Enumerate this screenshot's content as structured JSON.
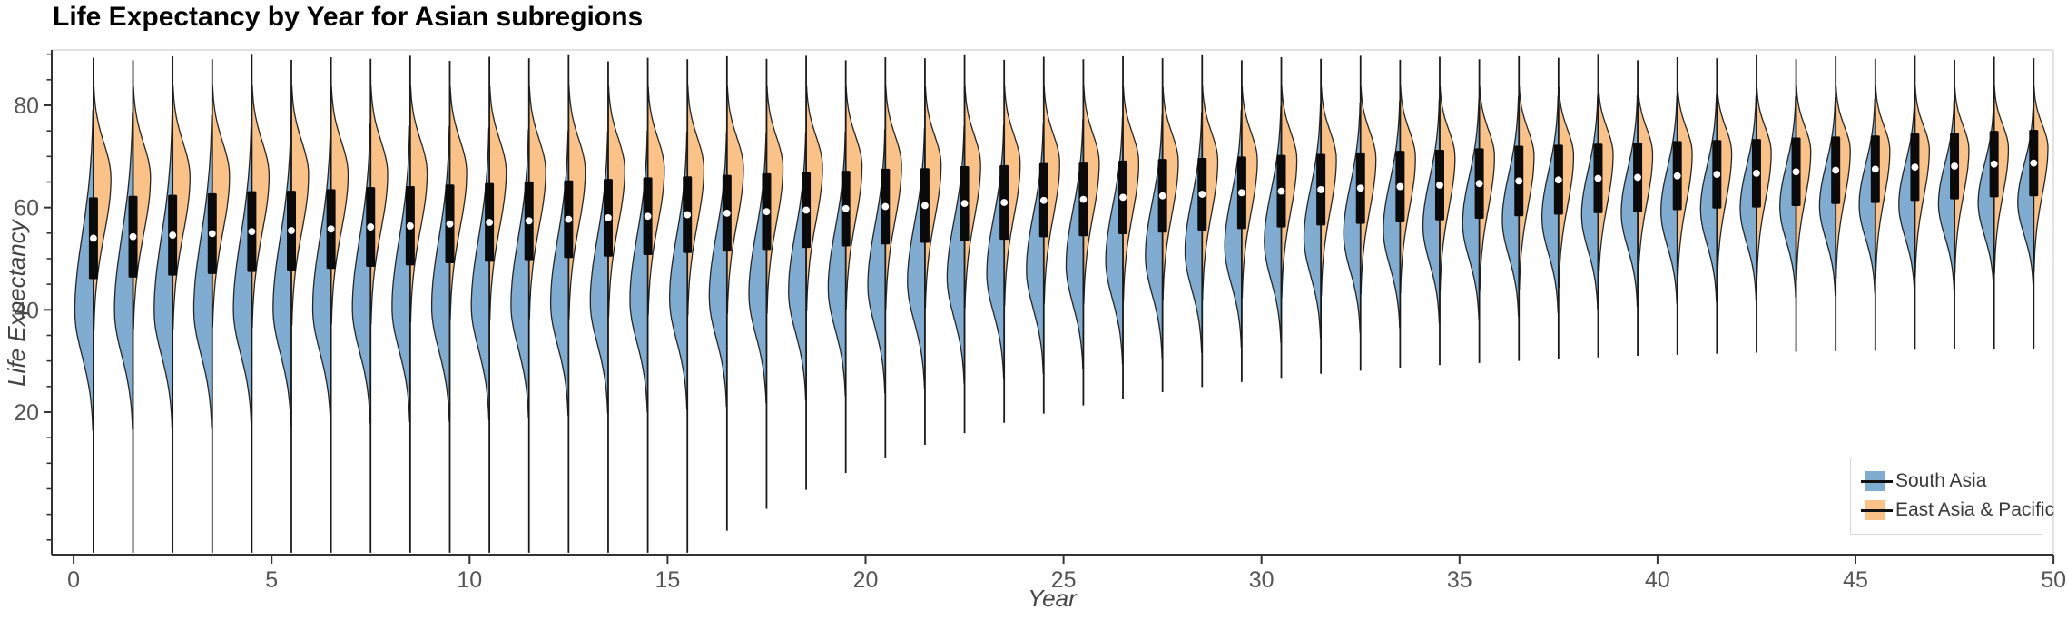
{
  "title": "Life Expectancy by Year for Asian subregions",
  "x_axis": {
    "label": "Year",
    "ticks": [
      0,
      5,
      10,
      15,
      20,
      25,
      30,
      35,
      40,
      45,
      50
    ]
  },
  "y_axis": {
    "label": "Life Expectancy",
    "ticks": [
      20,
      40,
      60,
      80
    ],
    "minor_step": 5,
    "minor_range": [
      -5,
      90
    ]
  },
  "legend": {
    "items": [
      {
        "label": "South Asia",
        "color": "#7FACD0"
      },
      {
        "label": "East Asia & Pacific",
        "color": "#FBC287"
      }
    ]
  },
  "colors": {
    "south_asia": "#7FACD0",
    "east_asia_pacific": "#FBC287",
    "outline": "#262626",
    "box": "#0a0a0a",
    "median_dot": "#ffffff",
    "stem": "#1a1a1a",
    "spine_dark": "#333333",
    "spine_light": "#d9d9d9",
    "tick_label": "#555555"
  },
  "chart_data": {
    "type": "violin",
    "split": true,
    "title": "Life Expectancy by Year for Asian subregions",
    "xlabel": "Year",
    "ylabel": "Life Expectancy",
    "xlim": [
      -0.55,
      50
    ],
    "ylim": [
      -8,
      91
    ],
    "legend_position": "lower right",
    "series_names": [
      "South Asia",
      "East Asia & Pacific"
    ],
    "violins": [
      {
        "year": 0,
        "med": 54.0,
        "q1": 46.0,
        "q3": 62.0,
        "pb": 39.7,
        "sb": 11.0,
        "po": 65.8,
        "so": 9.0,
        "lo": -7.5,
        "hi": 89.3
      },
      {
        "year": 1,
        "med": 54.3,
        "q1": 46.3,
        "q3": 62.3,
        "pb": 39.8,
        "sb": 10.9,
        "po": 65.9,
        "so": 8.9,
        "lo": -7.5,
        "hi": 88.8
      },
      {
        "year": 2,
        "med": 54.6,
        "q1": 46.7,
        "q3": 62.5,
        "pb": 39.8,
        "sb": 10.8,
        "po": 66.0,
        "so": 8.9,
        "lo": -7.5,
        "hi": 89.6
      },
      {
        "year": 3,
        "med": 54.9,
        "q1": 47.0,
        "q3": 62.8,
        "pb": 39.9,
        "sb": 10.8,
        "po": 66.2,
        "so": 8.8,
        "lo": -7.5,
        "hi": 89.0
      },
      {
        "year": 4,
        "med": 55.3,
        "q1": 47.4,
        "q3": 63.2,
        "pb": 40.0,
        "sb": 10.7,
        "po": 66.3,
        "so": 8.8,
        "lo": -7.5,
        "hi": 89.9
      },
      {
        "year": 5,
        "med": 55.5,
        "q1": 47.7,
        "q3": 63.3,
        "pb": 40.1,
        "sb": 10.6,
        "po": 66.4,
        "so": 8.7,
        "lo": -7.5,
        "hi": 88.9
      },
      {
        "year": 6,
        "med": 55.8,
        "q1": 48.0,
        "q3": 63.6,
        "pb": 40.2,
        "sb": 10.5,
        "po": 66.5,
        "so": 8.6,
        "lo": -7.5,
        "hi": 89.4
      },
      {
        "year": 7,
        "med": 56.2,
        "q1": 48.4,
        "q3": 64.0,
        "pb": 40.3,
        "sb": 10.4,
        "po": 66.6,
        "so": 8.6,
        "lo": -7.5,
        "hi": 89.1
      },
      {
        "year": 8,
        "med": 56.4,
        "q1": 48.7,
        "q3": 64.2,
        "pb": 40.4,
        "sb": 10.3,
        "po": 66.8,
        "so": 8.5,
        "lo": -7.5,
        "hi": 89.7
      },
      {
        "year": 9,
        "med": 56.8,
        "q1": 49.1,
        "q3": 64.5,
        "pb": 40.5,
        "sb": 10.3,
        "po": 66.9,
        "so": 8.4,
        "lo": -7.5,
        "hi": 88.7
      },
      {
        "year": 10,
        "med": 57.1,
        "q1": 49.4,
        "q3": 64.8,
        "pb": 40.7,
        "sb": 10.2,
        "po": 67.0,
        "so": 8.4,
        "lo": -7.5,
        "hi": 89.5
      },
      {
        "year": 11,
        "med": 57.4,
        "q1": 49.7,
        "q3": 65.1,
        "pb": 40.9,
        "sb": 10.1,
        "po": 67.1,
        "so": 8.3,
        "lo": -7.5,
        "hi": 89.2
      },
      {
        "year": 12,
        "med": 57.7,
        "q1": 50.1,
        "q3": 65.3,
        "pb": 41.2,
        "sb": 10.0,
        "po": 67.2,
        "so": 8.3,
        "lo": -7.5,
        "hi": 89.8
      },
      {
        "year": 13,
        "med": 58.0,
        "q1": 50.4,
        "q3": 65.6,
        "pb": 41.5,
        "sb": 9.9,
        "po": 67.4,
        "so": 8.2,
        "lo": -7.5,
        "hi": 88.6
      },
      {
        "year": 14,
        "med": 58.3,
        "q1": 50.7,
        "q3": 65.9,
        "pb": 41.8,
        "sb": 9.9,
        "po": 67.5,
        "so": 8.1,
        "lo": -7.5,
        "hi": 89.3
      },
      {
        "year": 15,
        "med": 58.6,
        "q1": 51.1,
        "q3": 66.1,
        "pb": 42.1,
        "sb": 9.8,
        "po": 67.6,
        "so": 8.1,
        "lo": -7.5,
        "hi": 89.0
      },
      {
        "year": 16,
        "med": 58.9,
        "q1": 51.4,
        "q3": 66.4,
        "pb": 42.5,
        "sb": 9.7,
        "po": 67.7,
        "so": 8.0,
        "lo": -3.2,
        "hi": 89.6
      },
      {
        "year": 17,
        "med": 59.2,
        "q1": 51.7,
        "q3": 66.7,
        "pb": 43.0,
        "sb": 9.6,
        "po": 67.8,
        "so": 8.0,
        "lo": 1.1,
        "hi": 89.1
      },
      {
        "year": 18,
        "med": 59.5,
        "q1": 52.1,
        "q3": 66.9,
        "pb": 43.5,
        "sb": 9.5,
        "po": 68.0,
        "so": 7.9,
        "lo": 4.8,
        "hi": 89.7
      },
      {
        "year": 19,
        "med": 59.8,
        "q1": 52.4,
        "q3": 67.2,
        "pb": 44.1,
        "sb": 9.4,
        "po": 68.1,
        "so": 7.8,
        "lo": 8.1,
        "hi": 88.8
      },
      {
        "year": 20,
        "med": 60.2,
        "q1": 52.8,
        "q3": 67.6,
        "pb": 44.7,
        "sb": 9.4,
        "po": 68.2,
        "so": 7.8,
        "lo": 11.1,
        "hi": 89.4
      },
      {
        "year": 21,
        "med": 60.4,
        "q1": 53.1,
        "q3": 67.7,
        "pb": 45.4,
        "sb": 9.3,
        "po": 68.3,
        "so": 7.7,
        "lo": 13.6,
        "hi": 89.2
      },
      {
        "year": 22,
        "med": 60.8,
        "q1": 53.5,
        "q3": 68.1,
        "pb": 46.2,
        "sb": 9.2,
        "po": 68.4,
        "so": 7.7,
        "lo": 15.9,
        "hi": 89.8
      },
      {
        "year": 23,
        "med": 61.0,
        "q1": 53.7,
        "q3": 68.3,
        "pb": 47.0,
        "sb": 9.1,
        "po": 68.6,
        "so": 7.6,
        "lo": 17.9,
        "hi": 88.9
      },
      {
        "year": 24,
        "med": 61.4,
        "q1": 54.2,
        "q3": 68.7,
        "pb": 47.8,
        "sb": 9.0,
        "po": 68.7,
        "so": 7.5,
        "lo": 19.7,
        "hi": 89.5
      },
      {
        "year": 25,
        "med": 61.6,
        "q1": 54.4,
        "q3": 68.8,
        "pb": 48.7,
        "sb": 9.0,
        "po": 68.8,
        "so": 7.5,
        "lo": 21.3,
        "hi": 89.0
      },
      {
        "year": 26,
        "med": 62.0,
        "q1": 54.8,
        "q3": 69.2,
        "pb": 49.6,
        "sb": 8.9,
        "po": 68.9,
        "so": 7.4,
        "lo": 22.6,
        "hi": 89.6
      },
      {
        "year": 27,
        "med": 62.3,
        "q1": 55.1,
        "q3": 69.5,
        "pb": 50.5,
        "sb": 8.8,
        "po": 69.0,
        "so": 7.3,
        "lo": 23.9,
        "hi": 89.2
      },
      {
        "year": 28,
        "med": 62.6,
        "q1": 55.5,
        "q3": 69.7,
        "pb": 51.4,
        "sb": 8.7,
        "po": 69.2,
        "so": 7.3,
        "lo": 24.9,
        "hi": 89.8
      },
      {
        "year": 29,
        "med": 62.9,
        "q1": 55.8,
        "q3": 70.0,
        "pb": 52.3,
        "sb": 8.6,
        "po": 69.3,
        "so": 7.2,
        "lo": 25.9,
        "hi": 88.8
      },
      {
        "year": 30,
        "med": 63.2,
        "q1": 56.1,
        "q3": 70.3,
        "pb": 53.2,
        "sb": 8.6,
        "po": 69.4,
        "so": 7.2,
        "lo": 26.7,
        "hi": 89.4
      },
      {
        "year": 31,
        "med": 63.5,
        "q1": 56.5,
        "q3": 70.5,
        "pb": 54.0,
        "sb": 8.5,
        "po": 69.5,
        "so": 7.1,
        "lo": 27.5,
        "hi": 89.1
      },
      {
        "year": 32,
        "med": 63.8,
        "q1": 56.8,
        "q3": 70.8,
        "pb": 54.8,
        "sb": 8.4,
        "po": 69.6,
        "so": 7.0,
        "lo": 28.1,
        "hi": 89.7
      },
      {
        "year": 33,
        "med": 64.1,
        "q1": 57.1,
        "q3": 71.1,
        "pb": 55.6,
        "sb": 8.3,
        "po": 69.8,
        "so": 7.0,
        "lo": 28.7,
        "hi": 88.9
      },
      {
        "year": 34,
        "med": 64.4,
        "q1": 57.5,
        "q3": 71.3,
        "pb": 56.3,
        "sb": 8.2,
        "po": 69.9,
        "so": 6.9,
        "lo": 29.2,
        "hi": 89.5
      },
      {
        "year": 35,
        "med": 64.7,
        "q1": 57.8,
        "q3": 71.6,
        "pb": 56.9,
        "sb": 8.1,
        "po": 70.0,
        "so": 6.9,
        "lo": 29.6,
        "hi": 89.0
      },
      {
        "year": 36,
        "med": 65.2,
        "q1": 58.3,
        "q3": 72.1,
        "pb": 57.5,
        "sb": 8.1,
        "po": 70.1,
        "so": 6.8,
        "lo": 30.0,
        "hi": 89.6
      },
      {
        "year": 37,
        "med": 65.4,
        "q1": 58.6,
        "q3": 72.3,
        "pb": 58.0,
        "sb": 8.0,
        "po": 70.2,
        "so": 6.7,
        "lo": 30.4,
        "hi": 89.3
      },
      {
        "year": 38,
        "med": 65.7,
        "q1": 58.9,
        "q3": 72.5,
        "pb": 58.5,
        "sb": 7.9,
        "po": 70.4,
        "so": 6.7,
        "lo": 30.7,
        "hi": 89.9
      },
      {
        "year": 39,
        "med": 65.9,
        "q1": 59.1,
        "q3": 72.7,
        "pb": 58.9,
        "sb": 7.8,
        "po": 70.5,
        "so": 6.6,
        "lo": 31.0,
        "hi": 88.8
      },
      {
        "year": 40,
        "med": 66.2,
        "q1": 59.5,
        "q3": 73.0,
        "pb": 59.2,
        "sb": 7.7,
        "po": 70.6,
        "so": 6.6,
        "lo": 31.2,
        "hi": 89.4
      },
      {
        "year": 41,
        "med": 66.5,
        "q1": 59.8,
        "q3": 73.2,
        "pb": 59.6,
        "sb": 7.7,
        "po": 70.7,
        "so": 6.5,
        "lo": 31.4,
        "hi": 89.2
      },
      {
        "year": 42,
        "med": 66.7,
        "q1": 60.0,
        "q3": 73.4,
        "pb": 59.8,
        "sb": 7.6,
        "po": 70.8,
        "so": 6.4,
        "lo": 31.6,
        "hi": 89.8
      },
      {
        "year": 43,
        "med": 67.0,
        "q1": 60.3,
        "q3": 73.7,
        "pb": 60.1,
        "sb": 7.5,
        "po": 71.0,
        "so": 6.4,
        "lo": 31.8,
        "hi": 89.0
      },
      {
        "year": 44,
        "med": 67.3,
        "q1": 60.7,
        "q3": 73.9,
        "pb": 60.3,
        "sb": 7.4,
        "po": 71.1,
        "so": 6.3,
        "lo": 31.9,
        "hi": 89.6
      },
      {
        "year": 45,
        "med": 67.5,
        "q1": 60.9,
        "q3": 74.1,
        "pb": 60.5,
        "sb": 7.3,
        "po": 71.2,
        "so": 6.3,
        "lo": 32.0,
        "hi": 89.1
      },
      {
        "year": 46,
        "med": 67.9,
        "q1": 61.3,
        "q3": 74.5,
        "pb": 60.6,
        "sb": 7.3,
        "po": 71.3,
        "so": 6.2,
        "lo": 32.2,
        "hi": 89.7
      },
      {
        "year": 47,
        "med": 68.1,
        "q1": 61.6,
        "q3": 74.6,
        "pb": 60.8,
        "sb": 7.2,
        "po": 71.4,
        "so": 6.1,
        "lo": 32.3,
        "hi": 88.9
      },
      {
        "year": 48,
        "med": 68.5,
        "q1": 62.0,
        "q3": 75.0,
        "pb": 60.9,
        "sb": 7.1,
        "po": 71.6,
        "so": 6.1,
        "lo": 32.3,
        "hi": 89.5
      },
      {
        "year": 49,
        "med": 68.7,
        "q1": 62.2,
        "q3": 75.2,
        "pb": 61.0,
        "sb": 7.0,
        "po": 71.7,
        "so": 6.0,
        "lo": 32.4,
        "hi": 89.2
      }
    ]
  }
}
